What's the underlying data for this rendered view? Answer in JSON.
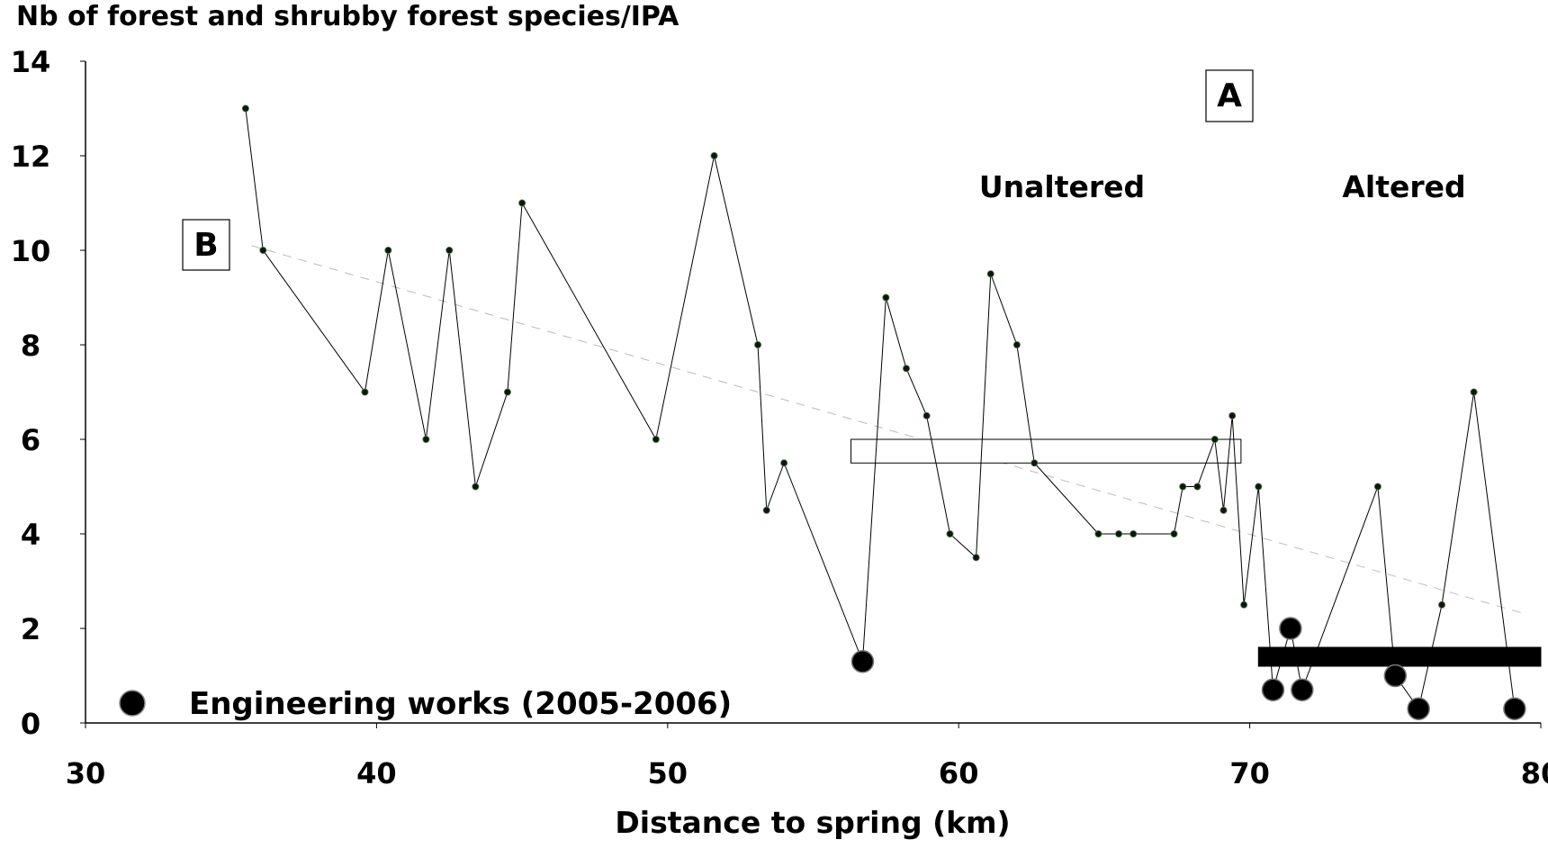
{
  "chart_data": {
    "type": "line",
    "title": "Nb of forest and shrubby forest species/IPA",
    "xlabel": "Distance to spring (km)",
    "ylabel": "",
    "xlim": [
      30,
      80
    ],
    "ylim": [
      0,
      14
    ],
    "xticks": [
      "30",
      "40",
      "50",
      "60",
      "70",
      "80"
    ],
    "yticks": [
      "0",
      "2",
      "4",
      "6",
      "8",
      "10",
      "12",
      "14"
    ],
    "grid": false,
    "panel_labels": {
      "a": "A",
      "b": "B"
    },
    "zone_labels": {
      "unaltered": "Unaltered",
      "altered": "Altered"
    },
    "legend": {
      "marker": "large black circle",
      "label": "Engineering works (2005-2006)",
      "placement": "bottom-left"
    },
    "trend": {
      "type": "linear",
      "style": "dashed",
      "color": "#bbbbbb",
      "x": [
        35.7,
        79.5
      ],
      "y": [
        10.1,
        2.3
      ]
    },
    "bars": [
      {
        "name": "unaltered",
        "x_start": 56.3,
        "x_end": 69.7,
        "y_low": 5.5,
        "y_high": 6.0,
        "fill": "#ffffff"
      },
      {
        "name": "altered",
        "x_start": 70.3,
        "x_end": 80.0,
        "y_low": 1.2,
        "y_high": 1.6,
        "fill": "#000000"
      }
    ],
    "series": [
      {
        "values": [
          [
            35.5,
            13
          ],
          [
            36.1,
            10
          ],
          [
            39.6,
            7
          ],
          [
            40.4,
            10
          ],
          [
            41.7,
            6
          ],
          [
            42.5,
            10
          ],
          [
            43.4,
            5
          ],
          [
            44.5,
            7
          ],
          [
            45.0,
            11
          ],
          [
            49.6,
            6
          ],
          [
            51.6,
            12
          ],
          [
            53.1,
            8
          ],
          [
            53.4,
            4.5
          ],
          [
            54.0,
            5.5
          ],
          [
            56.7,
            1.3
          ],
          [
            57.5,
            9
          ],
          [
            58.2,
            7.5
          ],
          [
            58.9,
            6.5
          ],
          [
            59.7,
            4
          ],
          [
            60.6,
            3.5
          ],
          [
            61.1,
            9.5
          ],
          [
            62.0,
            8
          ],
          [
            62.6,
            5.5
          ],
          [
            64.8,
            4
          ],
          [
            65.5,
            4
          ],
          [
            66.0,
            4
          ],
          [
            67.4,
            4
          ],
          [
            67.7,
            5
          ],
          [
            68.2,
            5
          ],
          [
            68.8,
            6
          ],
          [
            69.1,
            4.5
          ],
          [
            69.4,
            6.5
          ],
          [
            69.8,
            2.5
          ],
          [
            70.3,
            5
          ],
          [
            70.8,
            0.7
          ],
          [
            71.4,
            2
          ],
          [
            71.8,
            0.7
          ],
          [
            74.4,
            5
          ],
          [
            75.0,
            1.0
          ],
          [
            75.8,
            0.3
          ],
          [
            76.6,
            2.5
          ],
          [
            77.7,
            7
          ],
          [
            79.1,
            0.3
          ]
        ],
        "engineering_works_x": [
          56.7,
          70.8,
          71.4,
          71.8,
          75.0,
          75.8,
          79.1
        ]
      }
    ]
  }
}
